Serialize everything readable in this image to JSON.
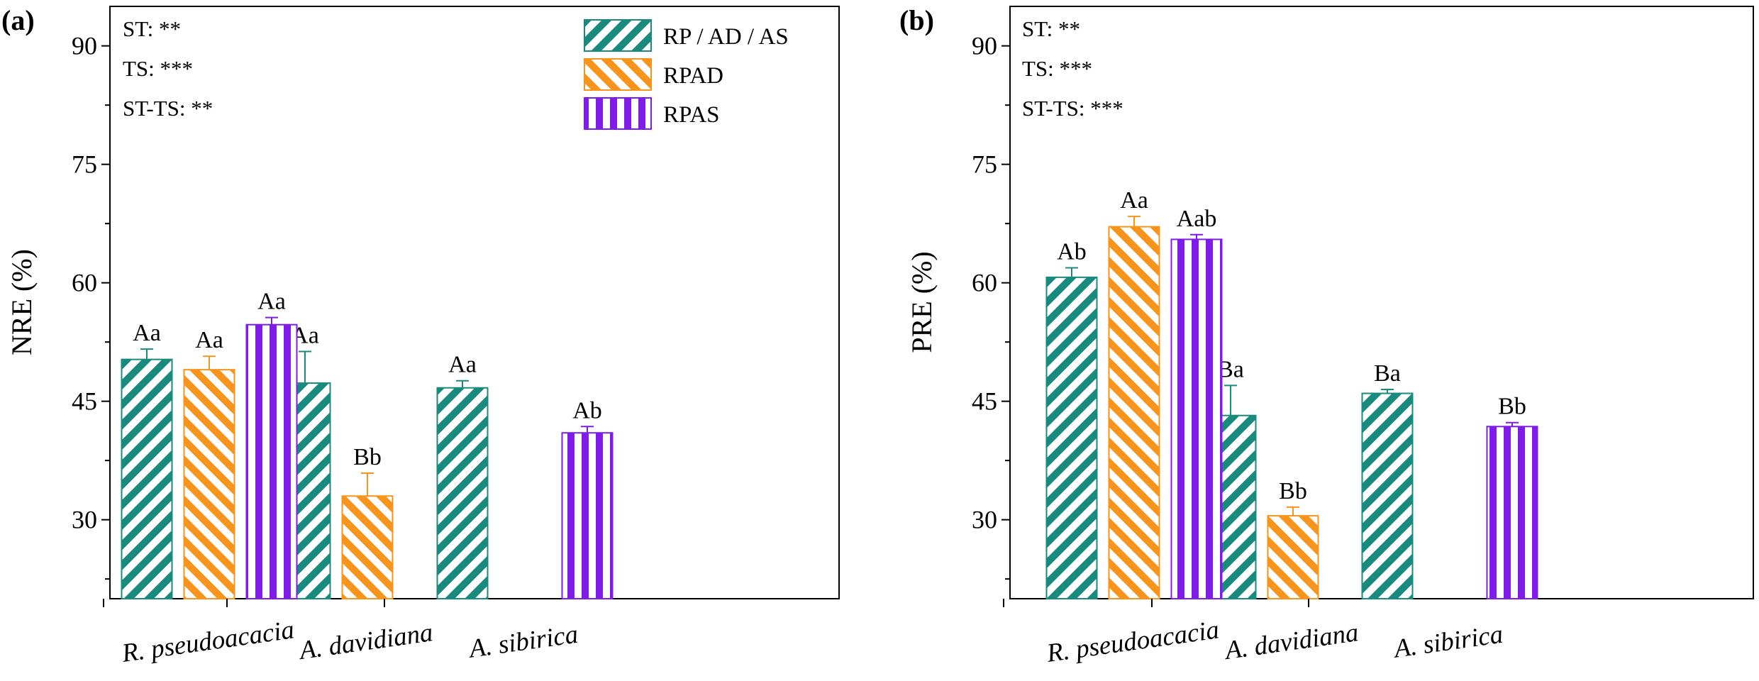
{
  "colors": {
    "rp": "#1a8a7e",
    "rpad": "#f7941d",
    "rpas": "#7f1de6",
    "axis": "#000000",
    "background": "#ffffff"
  },
  "legend": {
    "entries": [
      {
        "key": "rp",
        "label": "RP / AD / AS",
        "pattern": "diag-right"
      },
      {
        "key": "rpad",
        "label": "RPAD",
        "pattern": "diag-left"
      },
      {
        "key": "rpas",
        "label": "RPAS",
        "pattern": "vertical"
      }
    ]
  },
  "chart_data": [
    {
      "type": "bar",
      "panel_label": "(a)",
      "ylabel": "NRE (%)",
      "xlabel": "",
      "ylim": [
        20,
        95
      ],
      "yticks": [
        30,
        45,
        60,
        75,
        90
      ],
      "minor_yticks": [
        22.5,
        37.5,
        52.5,
        67.5,
        82.5
      ],
      "categories": [
        "R. pseudoacacia",
        "A. davidiana",
        "A. sibirica"
      ],
      "stats": [
        "ST: **",
        "TS: ***",
        "ST-TS: **"
      ],
      "legend_location": "top-right",
      "series": [
        {
          "name": "RP / AD / AS",
          "key": "rp",
          "values": [
            50.3,
            47.3,
            46.7
          ],
          "errors": [
            1.3,
            4.0,
            0.9
          ],
          "labels": [
            "Aa",
            "Aa",
            "Aa"
          ]
        },
        {
          "name": "RPAD",
          "key": "rpad",
          "values": [
            49.0,
            33.0,
            null
          ],
          "errors": [
            1.7,
            2.9,
            null
          ],
          "labels": [
            "Aa",
            "Bb",
            null
          ]
        },
        {
          "name": "RPAS",
          "key": "rpas",
          "values": [
            54.7,
            null,
            41.0
          ],
          "errors": [
            0.9,
            null,
            0.8
          ],
          "labels": [
            "Aa",
            null,
            "Ab"
          ]
        }
      ]
    },
    {
      "type": "bar",
      "panel_label": "(b)",
      "ylabel": "PRE (%)",
      "xlabel": "",
      "ylim": [
        20,
        95
      ],
      "yticks": [
        30,
        45,
        60,
        75,
        90
      ],
      "minor_yticks": [
        22.5,
        37.5,
        52.5,
        67.5,
        82.5
      ],
      "categories": [
        "R. pseudoacacia",
        "A. davidiana",
        "A. sibirica"
      ],
      "stats": [
        "ST: **",
        "TS: ***",
        "ST-TS: ***"
      ],
      "legend_location": "none",
      "series": [
        {
          "name": "RP / AD / AS",
          "key": "rp",
          "values": [
            60.7,
            43.2,
            46.0
          ],
          "errors": [
            1.2,
            3.8,
            0.5
          ],
          "labels": [
            "Ab",
            "Ba",
            "Ba"
          ]
        },
        {
          "name": "RPAD",
          "key": "rpad",
          "values": [
            67.1,
            30.5,
            null
          ],
          "errors": [
            1.3,
            1.1,
            null
          ],
          "labels": [
            "Aa",
            "Bb",
            null
          ]
        },
        {
          "name": "RPAS",
          "key": "rpas",
          "values": [
            65.5,
            null,
            41.8
          ],
          "errors": [
            0.6,
            null,
            0.5
          ],
          "labels": [
            "Aab",
            null,
            "Bb"
          ]
        }
      ]
    }
  ]
}
